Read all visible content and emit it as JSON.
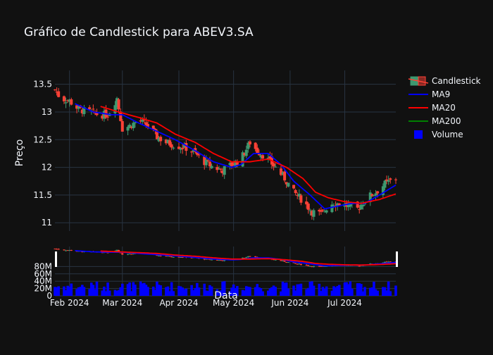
{
  "title": "Gráfico de Candlestick para ABEV3.SA",
  "chart_data": {
    "type": "candlestick",
    "title": "Gráfico de Candlestick para ABEV3.SA",
    "ylabel": "Preço",
    "xlabel": "Data",
    "price_axis": {
      "ylim": [
        10.85,
        13.75
      ],
      "ticks": [
        11,
        11.5,
        12,
        12.5,
        13,
        13.5
      ],
      "tick_labels": [
        "11",
        "11.5",
        "12",
        "12.5",
        "13",
        "13.5"
      ]
    },
    "volume_axis": {
      "ylim": [
        0,
        100000000
      ],
      "ticks": [
        0,
        20000000,
        40000000,
        60000000,
        80000000
      ],
      "tick_labels": [
        "0",
        "20M",
        "40M",
        "60M",
        "80M"
      ]
    },
    "x_range": [
      "2024-01-24",
      "2024-07-29"
    ],
    "x_ticks": [
      "2024-02-01",
      "2024-03-01",
      "2024-04-01",
      "2024-05-01",
      "2024-06-01",
      "2024-07-01"
    ],
    "x_tick_labels": [
      "Feb 2024",
      "Mar 2024",
      "Apr 2024",
      "May 2024",
      "Jun 2024",
      "Jul 2024"
    ],
    "close_anchors": [
      [
        "2024-01-24",
        13.4
      ],
      [
        "2024-01-27",
        13.25
      ],
      [
        "2024-02-01",
        13.2
      ],
      [
        "2024-02-06",
        13.05
      ],
      [
        "2024-02-12",
        13.0
      ],
      [
        "2024-02-17",
        12.95
      ],
      [
        "2024-02-22",
        12.95
      ],
      [
        "2024-02-27",
        13.25
      ],
      [
        "2024-03-01",
        12.7
      ],
      [
        "2024-03-05",
        12.75
      ],
      [
        "2024-03-10",
        12.85
      ],
      [
        "2024-03-15",
        12.75
      ],
      [
        "2024-03-20",
        12.55
      ],
      [
        "2024-03-25",
        12.45
      ],
      [
        "2024-03-30",
        12.4
      ],
      [
        "2024-04-05",
        12.35
      ],
      [
        "2024-04-10",
        12.25
      ],
      [
        "2024-04-15",
        12.1
      ],
      [
        "2024-04-20",
        12.0
      ],
      [
        "2024-04-25",
        11.95
      ],
      [
        "2024-04-30",
        12.05
      ],
      [
        "2024-05-05",
        12.15
      ],
      [
        "2024-05-10",
        12.45
      ],
      [
        "2024-05-14",
        12.3
      ],
      [
        "2024-05-18",
        12.2
      ],
      [
        "2024-05-24",
        12.0
      ],
      [
        "2024-05-29",
        11.8
      ],
      [
        "2024-06-03",
        11.55
      ],
      [
        "2024-06-08",
        11.4
      ],
      [
        "2024-06-13",
        11.2
      ],
      [
        "2024-06-18",
        11.15
      ],
      [
        "2024-06-23",
        11.35
      ],
      [
        "2024-06-28",
        11.35
      ],
      [
        "2024-07-03",
        11.3
      ],
      [
        "2024-07-08",
        11.25
      ],
      [
        "2024-07-13",
        11.45
      ],
      [
        "2024-07-18",
        11.55
      ],
      [
        "2024-07-23",
        11.7
      ],
      [
        "2024-07-29",
        11.8
      ]
    ],
    "ma9_anchors": [
      [
        "2024-02-04",
        13.15
      ],
      [
        "2024-02-14",
        13.0
      ],
      [
        "2024-02-24",
        12.95
      ],
      [
        "2024-03-01",
        12.95
      ],
      [
        "2024-03-10",
        12.8
      ],
      [
        "2024-03-20",
        12.65
      ],
      [
        "2024-03-30",
        12.5
      ],
      [
        "2024-04-10",
        12.3
      ],
      [
        "2024-04-20",
        12.1
      ],
      [
        "2024-04-30",
        12.0
      ],
      [
        "2024-05-05",
        12.05
      ],
      [
        "2024-05-12",
        12.25
      ],
      [
        "2024-05-20",
        12.25
      ],
      [
        "2024-05-27",
        12.05
      ],
      [
        "2024-06-03",
        11.75
      ],
      [
        "2024-06-12",
        11.5
      ],
      [
        "2024-06-20",
        11.25
      ],
      [
        "2024-06-27",
        11.3
      ],
      [
        "2024-07-05",
        11.35
      ],
      [
        "2024-07-12",
        11.35
      ],
      [
        "2024-07-20",
        11.5
      ],
      [
        "2024-07-29",
        11.68
      ]
    ],
    "ma20_anchors": [
      [
        "2024-02-18",
        13.1
      ],
      [
        "2024-02-28",
        13.0
      ],
      [
        "2024-03-10",
        12.9
      ],
      [
        "2024-03-20",
        12.8
      ],
      [
        "2024-03-30",
        12.6
      ],
      [
        "2024-04-10",
        12.45
      ],
      [
        "2024-04-20",
        12.25
      ],
      [
        "2024-04-30",
        12.1
      ],
      [
        "2024-05-10",
        12.1
      ],
      [
        "2024-05-20",
        12.15
      ],
      [
        "2024-05-30",
        12.0
      ],
      [
        "2024-06-08",
        11.8
      ],
      [
        "2024-06-15",
        11.55
      ],
      [
        "2024-06-22",
        11.45
      ],
      [
        "2024-07-01",
        11.38
      ],
      [
        "2024-07-10",
        11.35
      ],
      [
        "2024-07-20",
        11.42
      ],
      [
        "2024-07-29",
        11.52
      ]
    ],
    "legend_position": "top-right",
    "grid": true
  },
  "legend": [
    {
      "label": "Candlestick",
      "kind": "candle",
      "up_color": "#3d9970",
      "down_color": "#ff4136"
    },
    {
      "label": "MA9",
      "kind": "line",
      "color": "#0000ff"
    },
    {
      "label": "MA20",
      "kind": "line",
      "color": "#ff0000"
    },
    {
      "label": "MA200",
      "kind": "line",
      "color": "#008000"
    },
    {
      "label": "Volume",
      "kind": "box",
      "color": "#0000ff"
    }
  ],
  "colors": {
    "background": "#111111",
    "grid": "#283442",
    "up": "#3d9970",
    "down": "#ff4136",
    "ma9": "#0000ff",
    "ma20": "#ff0000",
    "volume": "#0000ff"
  }
}
